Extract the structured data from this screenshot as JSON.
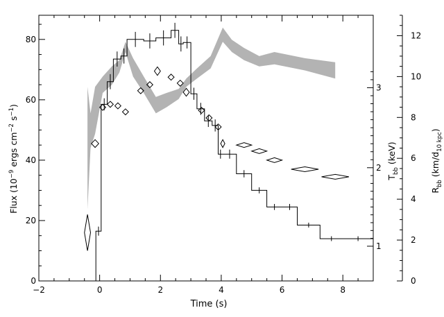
{
  "chart_data": {
    "type": "line",
    "xlabel": "Time (s)",
    "ylabel_left": {
      "main": "Flux (10",
      "sup1": "−9",
      "mid": " ergs cm",
      "sup2": "−2",
      "mid2": " s",
      "sup3": "−1",
      "end": ")"
    },
    "ylabel_t": {
      "main": "T",
      "sub": "bb",
      "end": " (keV)"
    },
    "ylabel_r": {
      "main": "R",
      "sub": "bb",
      "mid": " (km/d",
      "sub2": "10 kpc",
      "end": ")"
    },
    "xlim": [
      -2,
      9
    ],
    "ylim_flux": [
      0,
      88
    ],
    "ylim_radius": [
      0,
      13
    ],
    "x_ticks": [
      "−2",
      "0",
      "2",
      "4",
      "6",
      "8"
    ],
    "x_tick_values": [
      -2,
      0,
      2,
      4,
      6,
      8
    ],
    "flux_ticks": [
      "0",
      "20",
      "40",
      "60",
      "80"
    ],
    "flux_tick_values": [
      0,
      20,
      40,
      60,
      80
    ],
    "temp_ticks": [
      "1",
      "2",
      "3"
    ],
    "temp_tick_values": [
      1,
      2,
      3
    ],
    "radius_ticks": [
      "0",
      "2",
      "4",
      "6",
      "8",
      "10",
      "12"
    ],
    "radius_tick_values": [
      0,
      2,
      4,
      6,
      8,
      10,
      12
    ],
    "temp_to_flux": {
      "comment_free_pairs": [
        [
          1,
          11.5
        ],
        [
          2,
          37.5
        ],
        [
          3,
          64
        ]
      ]
    },
    "series": [
      {
        "name": "Flux",
        "kind": "step",
        "edges": [
          -0.3,
          -0.125,
          0.05,
          0.25,
          0.45,
          0.7,
          0.9,
          1.45,
          1.85,
          2.35,
          2.6,
          2.75,
          3.0,
          3.2,
          3.45,
          3.7,
          3.9,
          4.05,
          4.5,
          5.0,
          5.5,
          6.0,
          6.5,
          7.25,
          8.0,
          9.0
        ],
        "values": [
          0,
          16.5,
          58.5,
          66,
          73.5,
          74.5,
          80,
          79.5,
          80.5,
          83,
          78.5,
          79,
          62,
          57,
          53,
          51.5,
          42,
          42,
          35.5,
          30,
          24.5,
          24.5,
          18.5,
          14,
          14
        ],
        "errors": [
          0,
          1.5,
          2,
          2.5,
          2.5,
          2.5,
          2.5,
          2.5,
          2.5,
          2.5,
          2.5,
          2,
          2,
          2,
          2,
          2,
          1.5,
          1.5,
          1.2,
          1,
          1,
          1,
          0.8,
          0.8,
          0.8
        ]
      },
      {
        "name": "Temperature",
        "kind": "diamonds",
        "points": [
          {
            "x": -0.4,
            "y": 16,
            "dx": 0.1,
            "dy": 6
          },
          {
            "x": -0.15,
            "y": 45.5,
            "dx": 0.12,
            "dy": 1.3
          },
          {
            "x": 0.1,
            "y": 57.5,
            "dx": 0.1,
            "dy": 1
          },
          {
            "x": 0.35,
            "y": 58.5,
            "dx": 0.1,
            "dy": 1
          },
          {
            "x": 0.6,
            "y": 58,
            "dx": 0.1,
            "dy": 1
          },
          {
            "x": 0.85,
            "y": 56,
            "dx": 0.1,
            "dy": 1
          },
          {
            "x": 1.35,
            "y": 63,
            "dx": 0.1,
            "dy": 1
          },
          {
            "x": 1.65,
            "y": 65,
            "dx": 0.1,
            "dy": 1
          },
          {
            "x": 1.9,
            "y": 69.5,
            "dx": 0.1,
            "dy": 1.4
          },
          {
            "x": 2.35,
            "y": 67.5,
            "dx": 0.1,
            "dy": 1
          },
          {
            "x": 2.65,
            "y": 65.5,
            "dx": 0.1,
            "dy": 1
          },
          {
            "x": 2.85,
            "y": 62.5,
            "dx": 0.1,
            "dy": 1.3
          },
          {
            "x": 3.35,
            "y": 56.5,
            "dx": 0.1,
            "dy": 1
          },
          {
            "x": 3.6,
            "y": 54,
            "dx": 0.1,
            "dy": 1
          },
          {
            "x": 3.9,
            "y": 51,
            "dx": 0.1,
            "dy": 1
          },
          {
            "x": 4.05,
            "y": 45.5,
            "dx": 0.06,
            "dy": 1.3
          },
          {
            "x": 4.75,
            "y": 45,
            "dx": 0.25,
            "dy": 0.7
          },
          {
            "x": 5.25,
            "y": 43,
            "dx": 0.25,
            "dy": 0.7
          },
          {
            "x": 5.75,
            "y": 40,
            "dx": 0.25,
            "dy": 0.7
          },
          {
            "x": 6.75,
            "y": 37,
            "dx": 0.45,
            "dy": 0.6
          },
          {
            "x": 7.75,
            "y": 34.5,
            "dx": 0.45,
            "dy": 0.6
          }
        ]
      },
      {
        "name": "Radius",
        "kind": "band",
        "x": [
          -0.4,
          -0.3,
          -0.15,
          0.1,
          0.4,
          0.65,
          0.85,
          1.1,
          1.45,
          1.85,
          2.2,
          2.6,
          2.85,
          3.2,
          3.65,
          4.05,
          4.35,
          4.75,
          5.25,
          5.75,
          6.75,
          7.75
        ],
        "y_low": [
          3.5,
          6.5,
          7.2,
          9.2,
          9.6,
          10.2,
          11.2,
          10.0,
          9.2,
          8.2,
          8.5,
          8.9,
          9.5,
          9.9,
          10.4,
          11.7,
          11.2,
          10.8,
          10.5,
          10.6,
          10.3,
          9.9
        ],
        "y_high": [
          9.5,
          8.2,
          9.5,
          10.0,
          10.5,
          10.8,
          11.7,
          10.9,
          10.0,
          9.0,
          9.2,
          9.4,
          9.9,
          10.4,
          11.0,
          12.4,
          11.8,
          11.4,
          11.0,
          11.2,
          10.9,
          10.7
        ]
      }
    ],
    "colors": {
      "flux": "#000000",
      "temperature": "#000000",
      "radius_band": "#b3b3b3",
      "axis": "#000000"
    }
  }
}
